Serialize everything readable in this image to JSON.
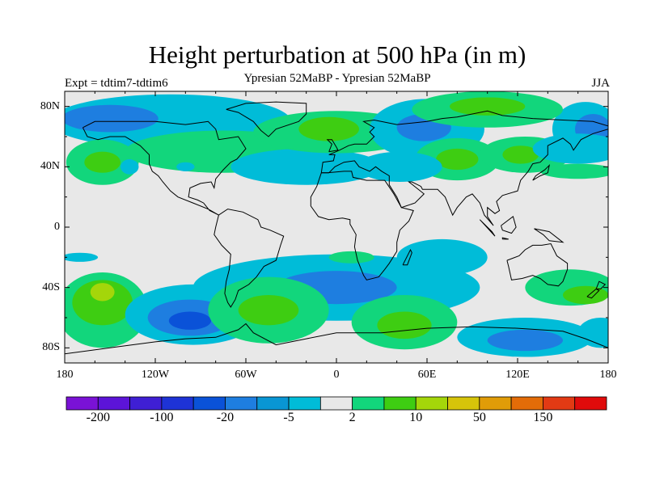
{
  "title": "Height perturbation at 500 hPa (in m)",
  "subtitle": "Ypresian  52MaBP - Ypresian  52MaBP",
  "experiment_label": "Expt = tdtim7-tdtim6",
  "season": "JJA",
  "map": {
    "projection": "cylindrical-equidistant",
    "lon_range": [
      -180,
      180
    ],
    "lat_range": [
      -90,
      90
    ],
    "background_color": "#e8e8e8",
    "coastline_color": "#000000"
  },
  "axes": {
    "y_ticks": [
      {
        "value": 80,
        "label": "80N"
      },
      {
        "value": 40,
        "label": "40N"
      },
      {
        "value": 0,
        "label": "0"
      },
      {
        "value": -40,
        "label": "40S"
      },
      {
        "value": -80,
        "label": "80S"
      }
    ],
    "x_ticks": [
      {
        "value": -180,
        "label": "180"
      },
      {
        "value": -120,
        "label": "120W"
      },
      {
        "value": -60,
        "label": "60W"
      },
      {
        "value": 0,
        "label": "0"
      },
      {
        "value": 60,
        "label": "60E"
      },
      {
        "value": 120,
        "label": "120E"
      },
      {
        "value": 180,
        "label": "180"
      }
    ]
  },
  "colorbar": {
    "colors": [
      "#7a12d6",
      "#5c14d8",
      "#3f1fd4",
      "#1e33d6",
      "#0a52d8",
      "#1e7ee0",
      "#0996d4",
      "#00bcd8",
      "#e8e8e8",
      "#12d67c",
      "#3ecd12",
      "#a4d60a",
      "#d6c40a",
      "#e09c08",
      "#e36c08",
      "#e23a14",
      "#e00b0b"
    ],
    "labels": [
      {
        "boundary": 1,
        "text": "-200"
      },
      {
        "boundary": 3,
        "text": "-100"
      },
      {
        "boundary": 5,
        "text": "-20"
      },
      {
        "boundary": 7,
        "text": "-5"
      },
      {
        "boundary": 9,
        "text": "2"
      },
      {
        "boundary": 11,
        "text": "10"
      },
      {
        "boundary": 13,
        "text": "50"
      },
      {
        "boundary": 15,
        "text": "150"
      }
    ]
  },
  "field_regions": [
    {
      "color": "#00bcd8",
      "cx": -110,
      "cy": 70,
      "rx": 80,
      "ry": 18
    },
    {
      "color": "#1e7ee0",
      "cx": -150,
      "cy": 72,
      "rx": 32,
      "ry": 9
    },
    {
      "color": "#00bcd8",
      "cx": 165,
      "cy": 65,
      "rx": 22,
      "ry": 18
    },
    {
      "color": "#1e7ee0",
      "cx": 170,
      "cy": 65,
      "rx": 12,
      "ry": 10
    },
    {
      "color": "#12d67c",
      "cx": -155,
      "cy": 43,
      "rx": 24,
      "ry": 15
    },
    {
      "color": "#3ecd12",
      "cx": -155,
      "cy": 43,
      "rx": 12,
      "ry": 7
    },
    {
      "color": "#00bcd8",
      "cx": -137,
      "cy": 40,
      "rx": 6,
      "ry": 5
    },
    {
      "color": "#12d67c",
      "cx": -75,
      "cy": 50,
      "rx": 65,
      "ry": 14
    },
    {
      "color": "#00bcd8",
      "cx": -20,
      "cy": 40,
      "rx": 50,
      "ry": 12
    },
    {
      "color": "#12d67c",
      "cx": 0,
      "cy": 63,
      "rx": 55,
      "ry": 14
    },
    {
      "color": "#3ecd12",
      "cx": -5,
      "cy": 65,
      "rx": 20,
      "ry": 8
    },
    {
      "color": "#00bcd8",
      "cx": 60,
      "cy": 65,
      "rx": 38,
      "ry": 20
    },
    {
      "color": "#1e7ee0",
      "cx": 58,
      "cy": 66,
      "rx": 18,
      "ry": 9
    },
    {
      "color": "#12d67c",
      "cx": 100,
      "cy": 78,
      "rx": 50,
      "ry": 12
    },
    {
      "color": "#3ecd12",
      "cx": 100,
      "cy": 80,
      "rx": 25,
      "ry": 6
    },
    {
      "color": "#12d67c",
      "cx": 80,
      "cy": 45,
      "rx": 28,
      "ry": 14
    },
    {
      "color": "#3ecd12",
      "cx": 80,
      "cy": 45,
      "rx": 14,
      "ry": 7
    },
    {
      "color": "#00bcd8",
      "cx": 42,
      "cy": 40,
      "rx": 28,
      "ry": 10
    },
    {
      "color": "#12d67c",
      "cx": 125,
      "cy": 48,
      "rx": 30,
      "ry": 12
    },
    {
      "color": "#3ecd12",
      "cx": 122,
      "cy": 48,
      "rx": 12,
      "ry": 6
    },
    {
      "color": "#00bcd8",
      "cx": 160,
      "cy": 52,
      "rx": 30,
      "ry": 10
    },
    {
      "color": "#12d67c",
      "cx": 160,
      "cy": 37,
      "rx": 25,
      "ry": 5
    },
    {
      "color": "#00bcd8",
      "cx": -100,
      "cy": 40,
      "rx": 6,
      "ry": 3
    },
    {
      "color": "#00bcd8",
      "cx": 0,
      "cy": -40,
      "rx": 95,
      "ry": 22
    },
    {
      "color": "#1e7ee0",
      "cx": 0,
      "cy": -40,
      "rx": 40,
      "ry": 11
    },
    {
      "color": "#00bcd8",
      "cx": 70,
      "cy": -20,
      "rx": 30,
      "ry": 12
    },
    {
      "color": "#12d67c",
      "cx": 10,
      "cy": -20,
      "rx": 15,
      "ry": 4
    },
    {
      "color": "#12d67c",
      "cx": -155,
      "cy": -55,
      "rx": 30,
      "ry": 25
    },
    {
      "color": "#3ecd12",
      "cx": -155,
      "cy": -50,
      "rx": 20,
      "ry": 15
    },
    {
      "color": "#a4d60a",
      "cx": -155,
      "cy": -43,
      "rx": 8,
      "ry": 6
    },
    {
      "color": "#00bcd8",
      "cx": -170,
      "cy": -20,
      "rx": 12,
      "ry": 3
    },
    {
      "color": "#00bcd8",
      "cx": -95,
      "cy": -58,
      "rx": 45,
      "ry": 20
    },
    {
      "color": "#1e7ee0",
      "cx": -97,
      "cy": -60,
      "rx": 28,
      "ry": 12
    },
    {
      "color": "#0a52d8",
      "cx": -97,
      "cy": -62,
      "rx": 14,
      "ry": 6
    },
    {
      "color": "#12d67c",
      "cx": -45,
      "cy": -55,
      "rx": 40,
      "ry": 22
    },
    {
      "color": "#3ecd12",
      "cx": -45,
      "cy": -55,
      "rx": 20,
      "ry": 10
    },
    {
      "color": "#12d67c",
      "cx": 45,
      "cy": -63,
      "rx": 35,
      "ry": 18
    },
    {
      "color": "#3ecd12",
      "cx": 45,
      "cy": -65,
      "rx": 18,
      "ry": 9
    },
    {
      "color": "#00bcd8",
      "cx": 125,
      "cy": -73,
      "rx": 45,
      "ry": 13
    },
    {
      "color": "#1e7ee0",
      "cx": 125,
      "cy": -75,
      "rx": 25,
      "ry": 7
    },
    {
      "color": "#12d67c",
      "cx": 155,
      "cy": -40,
      "rx": 30,
      "ry": 12
    },
    {
      "color": "#3ecd12",
      "cx": 165,
      "cy": -45,
      "rx": 15,
      "ry": 6
    },
    {
      "color": "#00bcd8",
      "cx": 175,
      "cy": -70,
      "rx": 15,
      "ry": 10
    }
  ],
  "coastlines": [
    [
      [
        -168,
        66
      ],
      [
        -160,
        70
      ],
      [
        -140,
        70
      ],
      [
        -120,
        70
      ],
      [
        -100,
        68
      ],
      [
        -85,
        70
      ],
      [
        -80,
        65
      ],
      [
        -78,
        58
      ],
      [
        -65,
        60
      ],
      [
        -60,
        52
      ],
      [
        -66,
        45
      ],
      [
        -70,
        43
      ],
      [
        -75,
        38
      ],
      [
        -80,
        32
      ],
      [
        -81,
        26
      ],
      [
        -83,
        30
      ],
      [
        -90,
        29
      ],
      [
        -97,
        26
      ],
      [
        -98,
        20
      ],
      [
        -92,
        18
      ],
      [
        -88,
        16
      ],
      [
        -84,
        11
      ],
      [
        -80,
        9
      ],
      [
        -78,
        8
      ],
      [
        -85,
        12
      ],
      [
        -95,
        16
      ],
      [
        -105,
        20
      ],
      [
        -110,
        24
      ],
      [
        -115,
        30
      ],
      [
        -118,
        34
      ],
      [
        -122,
        37
      ],
      [
        -124,
        42
      ],
      [
        -124,
        48
      ],
      [
        -130,
        54
      ],
      [
        -140,
        60
      ],
      [
        -150,
        60
      ],
      [
        -158,
        58
      ],
      [
        -165,
        60
      ],
      [
        -168,
        66
      ]
    ],
    [
      [
        -78,
        8
      ],
      [
        -72,
        12
      ],
      [
        -62,
        10
      ],
      [
        -52,
        5
      ],
      [
        -50,
        0
      ],
      [
        -44,
        -2
      ],
      [
        -35,
        -6
      ],
      [
        -37,
        -12
      ],
      [
        -40,
        -22
      ],
      [
        -48,
        -26
      ],
      [
        -53,
        -33
      ],
      [
        -58,
        -38
      ],
      [
        -65,
        -42
      ],
      [
        -67,
        -48
      ],
      [
        -70,
        -53
      ],
      [
        -72,
        -50
      ],
      [
        -74,
        -44
      ],
      [
        -73,
        -36
      ],
      [
        -71,
        -28
      ],
      [
        -70,
        -18
      ],
      [
        -76,
        -12
      ],
      [
        -81,
        -5
      ],
      [
        -80,
        0
      ],
      [
        -78,
        8
      ]
    ],
    [
      [
        -10,
        36
      ],
      [
        -6,
        36
      ],
      [
        5,
        37
      ],
      [
        10,
        37
      ],
      [
        11,
        33
      ],
      [
        20,
        31
      ],
      [
        32,
        31
      ],
      [
        34,
        28
      ],
      [
        38,
        22
      ],
      [
        43,
        13
      ],
      [
        51,
        11
      ],
      [
        48,
        4
      ],
      [
        42,
        -2
      ],
      [
        40,
        -10
      ],
      [
        40,
        -16
      ],
      [
        35,
        -24
      ],
      [
        32,
        -28
      ],
      [
        28,
        -33
      ],
      [
        20,
        -35
      ],
      [
        18,
        -32
      ],
      [
        14,
        -22
      ],
      [
        12,
        -13
      ],
      [
        13,
        -5
      ],
      [
        9,
        2
      ],
      [
        9,
        5
      ],
      [
        4,
        6
      ],
      [
        -5,
        5
      ],
      [
        -12,
        7
      ],
      [
        -17,
        14
      ],
      [
        -17,
        20
      ],
      [
        -13,
        27
      ],
      [
        -10,
        36
      ]
    ],
    [
      [
        -10,
        36
      ],
      [
        -9,
        43
      ],
      [
        -2,
        44
      ],
      [
        -1,
        48
      ],
      [
        -5,
        48
      ],
      [
        2,
        51
      ],
      [
        8,
        54
      ],
      [
        12,
        55
      ],
      [
        20,
        55
      ],
      [
        25,
        60
      ],
      [
        22,
        63
      ],
      [
        25,
        66
      ],
      [
        18,
        70
      ],
      [
        25,
        71
      ],
      [
        40,
        68
      ],
      [
        60,
        70
      ],
      [
        70,
        72
      ],
      [
        80,
        73
      ],
      [
        100,
        77
      ],
      [
        110,
        74
      ],
      [
        130,
        72
      ],
      [
        150,
        71
      ],
      [
        170,
        70
      ],
      [
        180,
        67
      ]
    ],
    [
      [
        180,
        65
      ],
      [
        170,
        62
      ],
      [
        162,
        58
      ],
      [
        157,
        51
      ],
      [
        155,
        55
      ],
      [
        150,
        59
      ],
      [
        140,
        54
      ],
      [
        140,
        48
      ],
      [
        135,
        43
      ],
      [
        130,
        42
      ],
      [
        127,
        37
      ],
      [
        122,
        31
      ],
      [
        120,
        24
      ],
      [
        110,
        21
      ],
      [
        106,
        17
      ],
      [
        108,
        11
      ],
      [
        105,
        9
      ],
      [
        100,
        13
      ],
      [
        100,
        7
      ],
      [
        104,
        1
      ],
      [
        98,
        8
      ],
      [
        95,
        16
      ],
      [
        90,
        22
      ],
      [
        86,
        20
      ],
      [
        80,
        13
      ],
      [
        77,
        8
      ],
      [
        72,
        20
      ],
      [
        67,
        25
      ],
      [
        57,
        25
      ],
      [
        56,
        27
      ],
      [
        50,
        30
      ],
      [
        48,
        30
      ],
      [
        58,
        22
      ],
      [
        52,
        16
      ],
      [
        43,
        13
      ],
      [
        40,
        20
      ],
      [
        35,
        28
      ],
      [
        35,
        34
      ],
      [
        30,
        37
      ],
      [
        26,
        40
      ],
      [
        22,
        37
      ],
      [
        15,
        40
      ],
      [
        12,
        44
      ],
      [
        5,
        43
      ],
      [
        -1,
        40
      ],
      [
        -5,
        36
      ],
      [
        -10,
        36
      ]
    ],
    [
      [
        113,
        -22
      ],
      [
        114,
        -26
      ],
      [
        116,
        -35
      ],
      [
        123,
        -34
      ],
      [
        130,
        -32
      ],
      [
        135,
        -34
      ],
      [
        140,
        -38
      ],
      [
        147,
        -39
      ],
      [
        150,
        -36
      ],
      [
        153,
        -28
      ],
      [
        153,
        -24
      ],
      [
        146,
        -19
      ],
      [
        142,
        -11
      ],
      [
        136,
        -12
      ],
      [
        130,
        -12
      ],
      [
        125,
        -15
      ],
      [
        121,
        -19
      ],
      [
        113,
        -22
      ]
    ],
    [
      [
        -180,
        -84
      ],
      [
        -150,
        -80
      ],
      [
        -120,
        -76
      ],
      [
        -100,
        -74
      ],
      [
        -80,
        -73
      ],
      [
        -65,
        -68
      ],
      [
        -60,
        -64
      ],
      [
        -55,
        -70
      ],
      [
        -40,
        -78
      ],
      [
        -20,
        -74
      ],
      [
        0,
        -70
      ],
      [
        30,
        -70
      ],
      [
        60,
        -67
      ],
      [
        90,
        -66
      ],
      [
        120,
        -67
      ],
      [
        150,
        -69
      ],
      [
        165,
        -74
      ],
      [
        180,
        -80
      ]
    ],
    [
      [
        -73,
        78
      ],
      [
        -60,
        82
      ],
      [
        -40,
        83
      ],
      [
        -20,
        82
      ],
      [
        -20,
        75
      ],
      [
        -25,
        70
      ],
      [
        -40,
        65
      ],
      [
        -45,
        60
      ],
      [
        -50,
        64
      ],
      [
        -55,
        70
      ],
      [
        -65,
        76
      ],
      [
        -73,
        78
      ]
    ],
    [
      [
        -5,
        50
      ],
      [
        -3,
        55
      ],
      [
        -6,
        58
      ],
      [
        -3,
        58
      ],
      [
        0,
        53
      ],
      [
        1,
        51
      ],
      [
        -5,
        50
      ]
    ],
    [
      [
        44,
        -25
      ],
      [
        49,
        -15
      ],
      [
        50,
        -17
      ],
      [
        47,
        -25
      ],
      [
        44,
        -25
      ]
    ],
    [
      [
        172,
        -41
      ],
      [
        174,
        -36
      ],
      [
        178,
        -38
      ],
      [
        175,
        -41
      ],
      [
        172,
        -41
      ]
    ],
    [
      [
        166,
        -46
      ],
      [
        172,
        -41
      ],
      [
        174,
        -42
      ],
      [
        169,
        -47
      ],
      [
        166,
        -46
      ]
    ],
    [
      [
        130,
        31
      ],
      [
        135,
        34
      ],
      [
        140,
        36
      ],
      [
        141,
        41
      ],
      [
        138,
        38
      ],
      [
        132,
        34
      ],
      [
        130,
        31
      ]
    ],
    [
      [
        95,
        5
      ],
      [
        105,
        -6
      ],
      [
        103,
        -3
      ],
      [
        95,
        5
      ]
    ],
    [
      [
        110,
        -8
      ],
      [
        114,
        -8
      ],
      [
        110,
        -7
      ],
      [
        110,
        -8
      ]
    ],
    [
      [
        109,
        1
      ],
      [
        117,
        7
      ],
      [
        119,
        0
      ],
      [
        116,
        -4
      ],
      [
        110,
        -2
      ],
      [
        109,
        1
      ]
    ],
    [
      [
        131,
        -1
      ],
      [
        141,
        -3
      ],
      [
        150,
        -10
      ],
      [
        141,
        -9
      ],
      [
        137,
        -5
      ],
      [
        131,
        -1
      ]
    ]
  ]
}
